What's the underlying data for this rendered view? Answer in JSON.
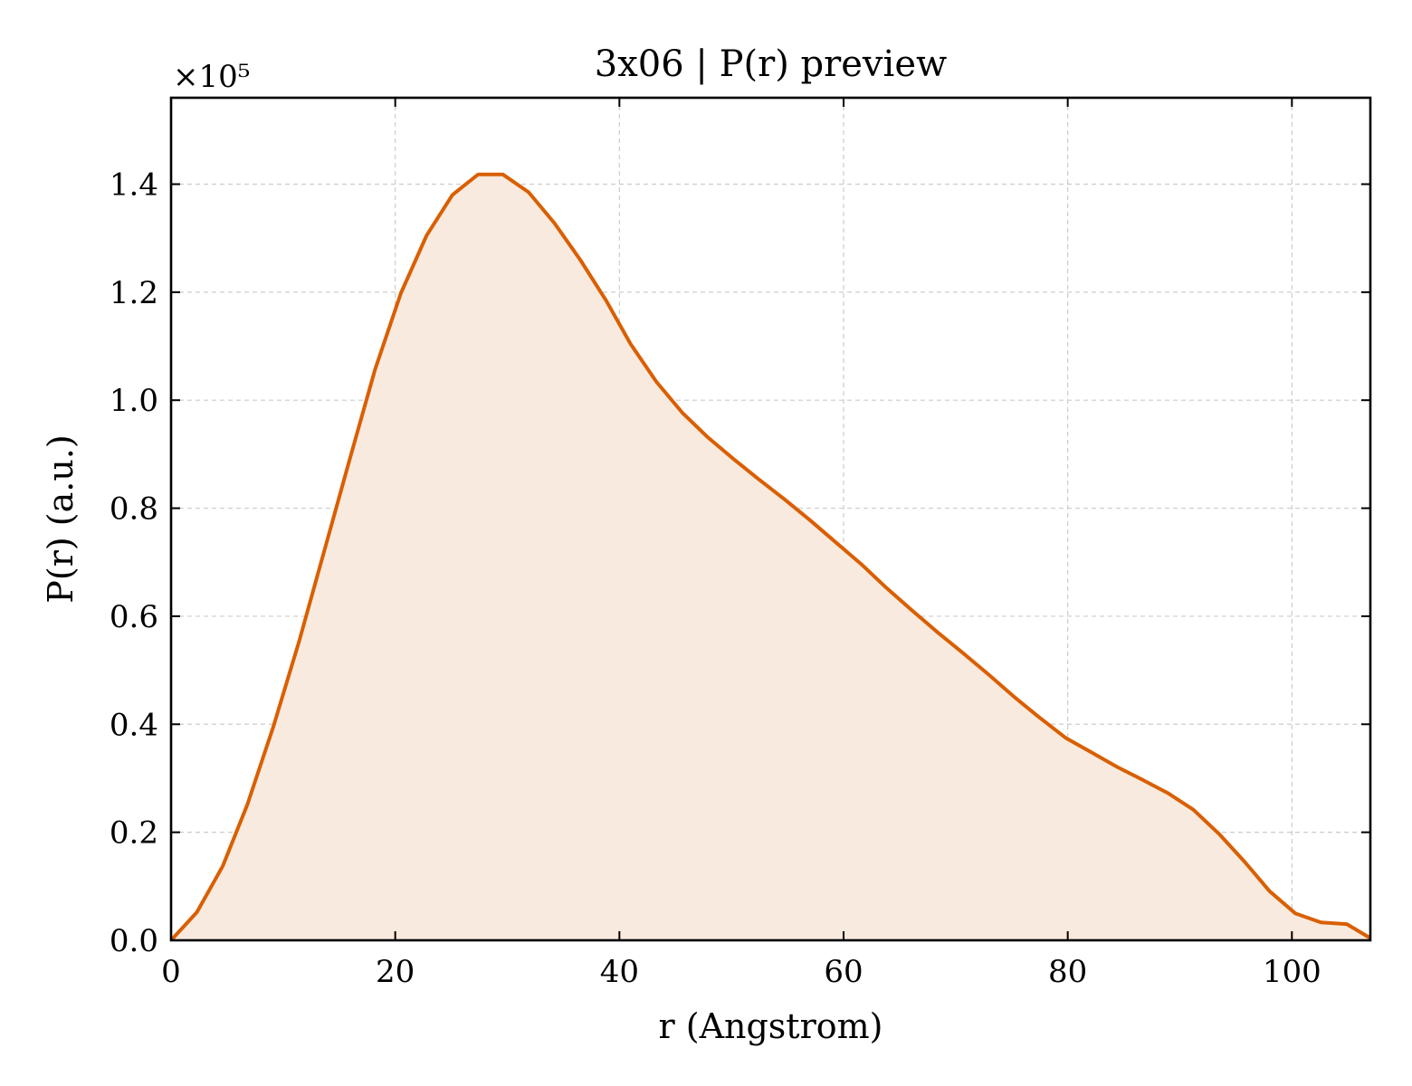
{
  "chart_data": {
    "type": "area",
    "title": "3x06 | P(r) preview",
    "xlabel": "r (Angstrom)",
    "ylabel": "P(r) (a.u.)",
    "y_offset_label": "×10⁵",
    "xlim": [
      0,
      107
    ],
    "ylim": [
      0,
      1.56
    ],
    "xticks": [
      0,
      20,
      40,
      60,
      80,
      100
    ],
    "xtick_labels": [
      "0",
      "20",
      "40",
      "60",
      "80",
      "100"
    ],
    "yticks": [
      0,
      0.2,
      0.4,
      0.6,
      0.8,
      1.0,
      1.2,
      1.4
    ],
    "ytick_labels": [
      "0.0",
      "0.2",
      "0.4",
      "0.6",
      "0.8",
      "1.0",
      "1.2",
      "1.4"
    ],
    "grid": true,
    "line_color": "#d95f02",
    "fill_color": "#f9eadf",
    "series": [
      {
        "x": [
          0,
          2.3,
          4.6,
          6.8,
          9.1,
          11.4,
          13.7,
          16.0,
          18.2,
          20.5,
          22.8,
          25.1,
          27.4,
          29.6,
          31.9,
          34.2,
          36.5,
          38.8,
          41.0,
          43.3,
          45.6,
          47.9,
          50.2,
          52.4,
          54.7,
          57.0,
          59.3,
          61.6,
          63.8,
          66.1,
          68.4,
          70.7,
          73.0,
          75.2,
          77.5,
          79.8,
          82.1,
          84.4,
          86.6,
          88.9,
          91.2,
          93.5,
          95.8,
          98.0,
          100.3,
          102.6,
          104.9,
          107.0
        ],
        "values": [
          0.0,
          0.052,
          0.137,
          0.251,
          0.394,
          0.552,
          0.723,
          0.895,
          1.057,
          1.198,
          1.305,
          1.38,
          1.418,
          1.418,
          1.385,
          1.328,
          1.26,
          1.185,
          1.104,
          1.034,
          0.977,
          0.931,
          0.891,
          0.854,
          0.817,
          0.778,
          0.737,
          0.696,
          0.653,
          0.611,
          0.57,
          0.531,
          0.491,
          0.451,
          0.412,
          0.375,
          0.348,
          0.321,
          0.298,
          0.273,
          0.242,
          0.197,
          0.145,
          0.091,
          0.05,
          0.033,
          0.03,
          0.004
        ]
      }
    ]
  }
}
